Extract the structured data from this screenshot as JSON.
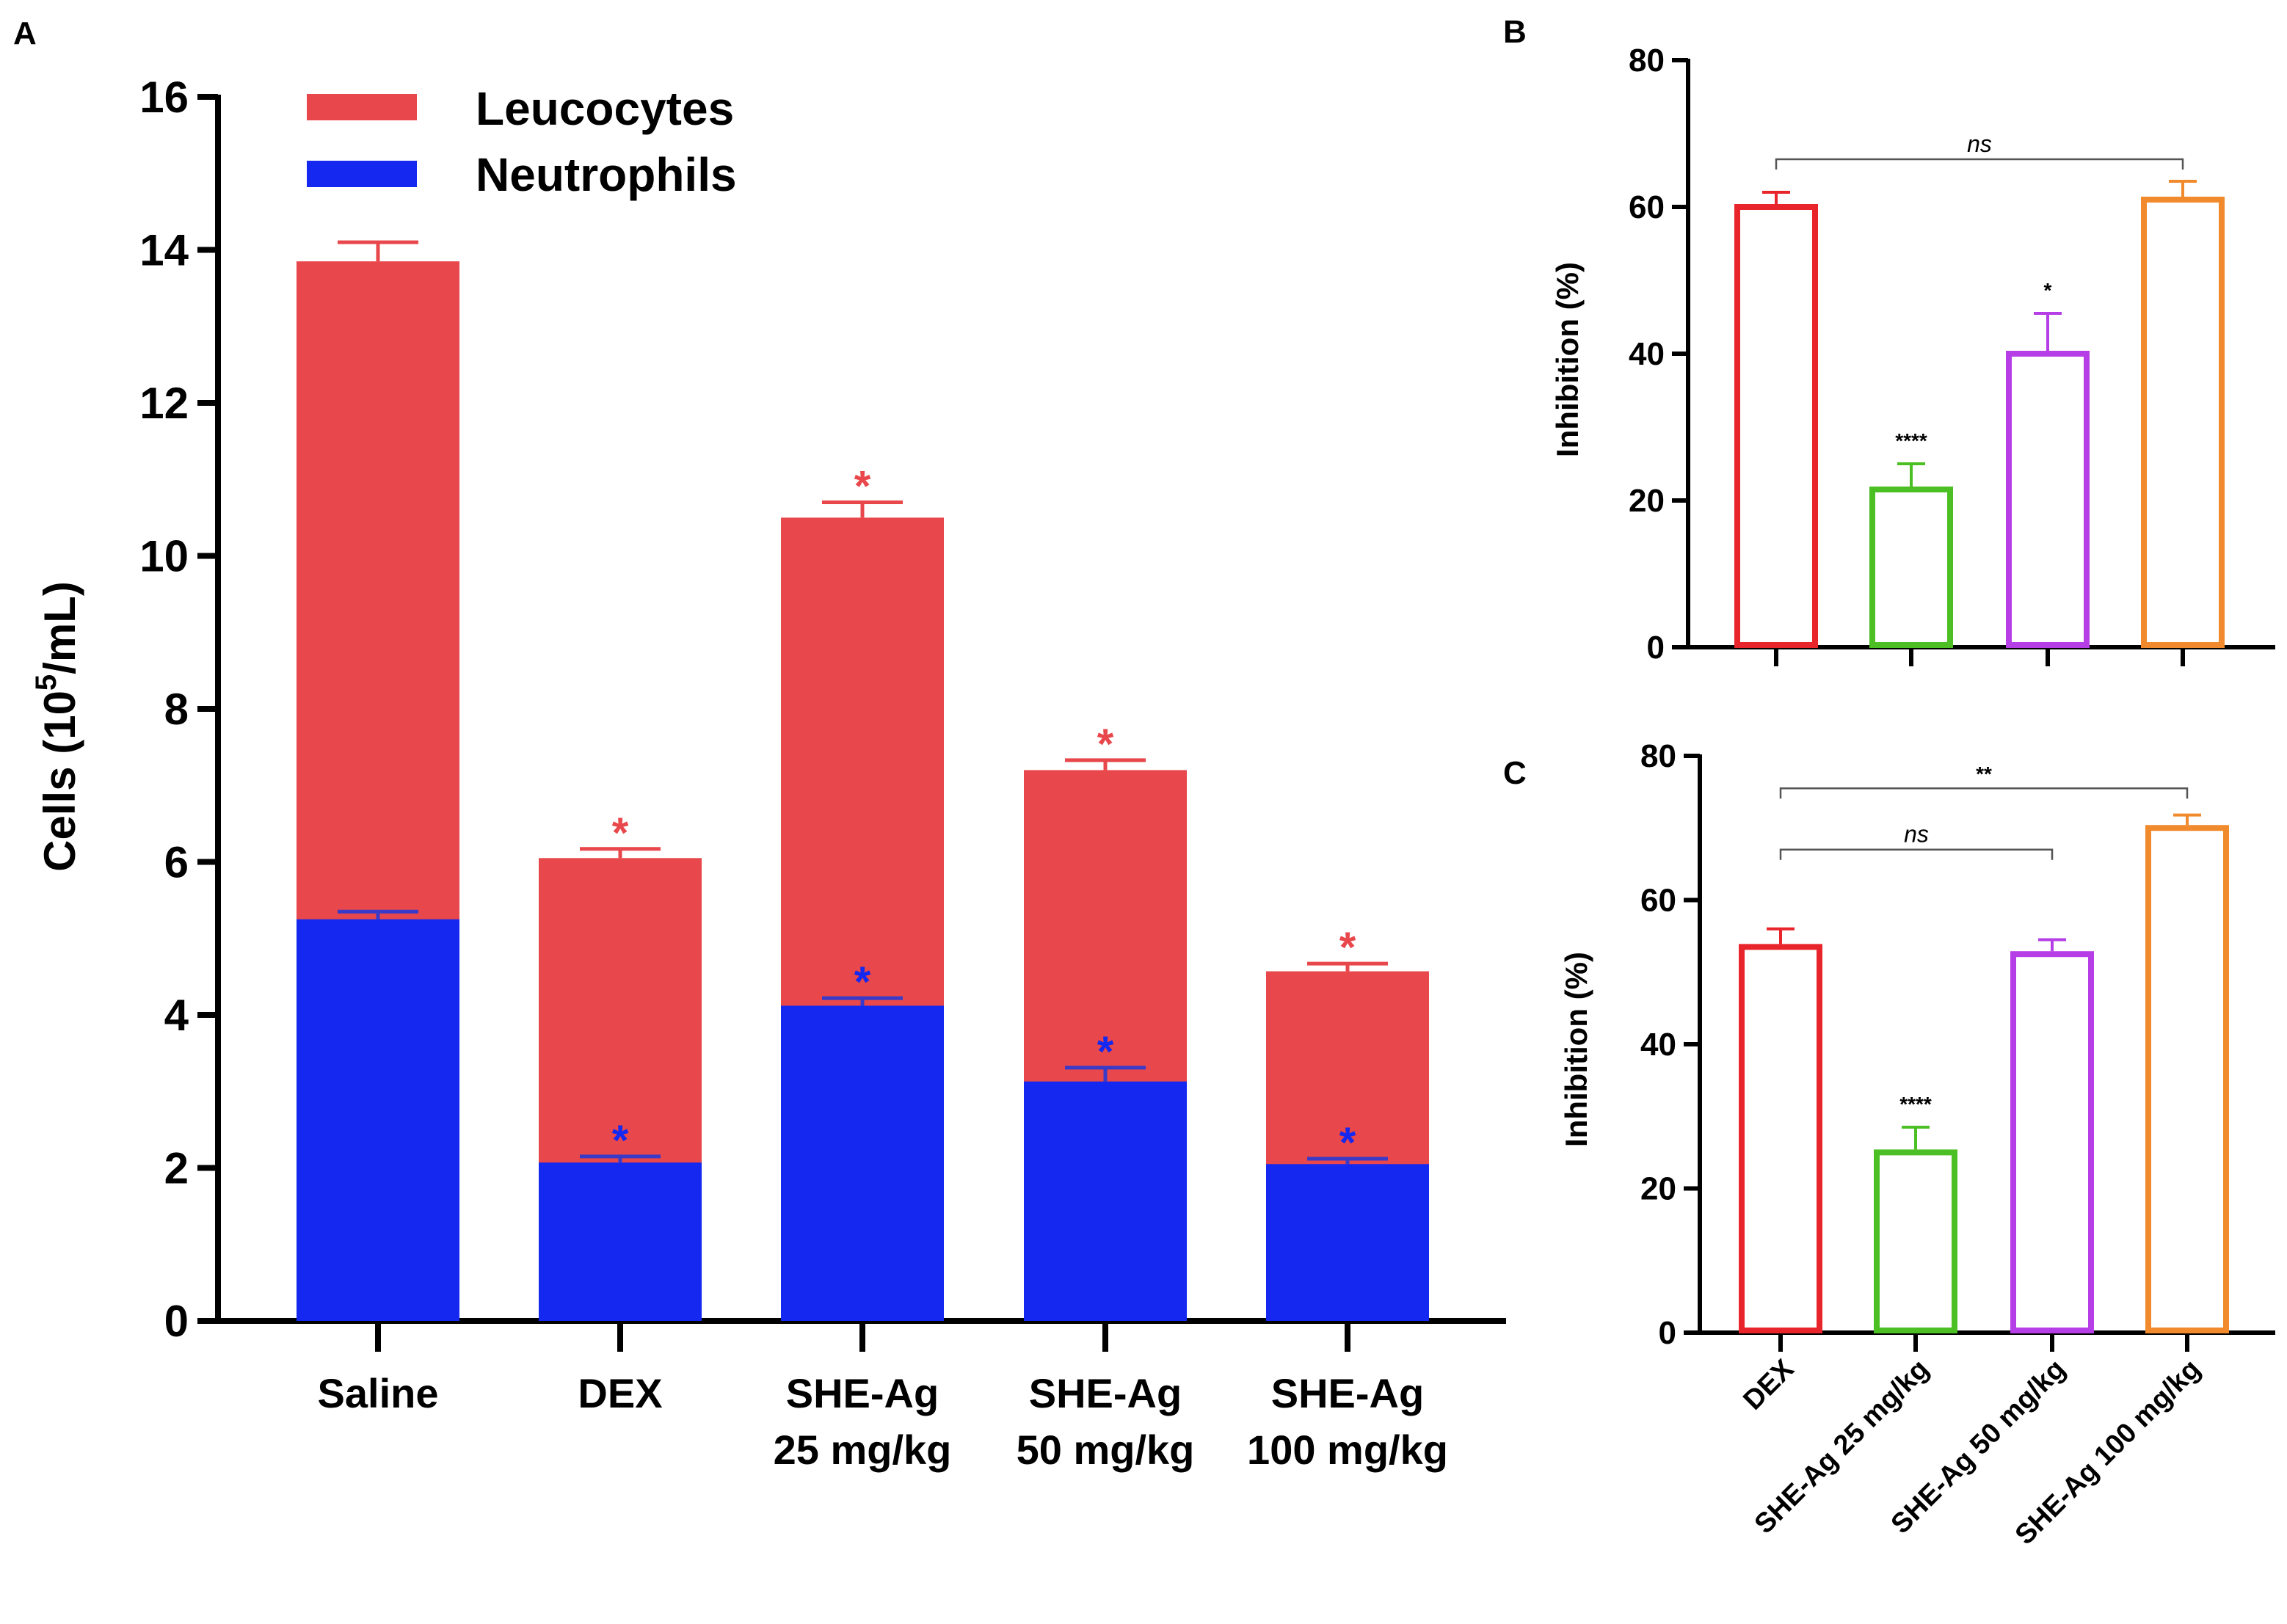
{
  "colors": {
    "leucocytes": "#e8474b",
    "neutrophils": "#1428f0",
    "dex": "#e8252b",
    "she25": "#4cbf24",
    "she50": "#b63ee6",
    "she100": "#f08a2c"
  },
  "chart_data": [
    {
      "id": "A",
      "panel_label": "A",
      "type": "bar",
      "stacked": false,
      "overlay": true,
      "ylabel": "Cells (10",
      "ylabel_sup": "5",
      "ylabel_end": "/mL)",
      "ylim": [
        0,
        16
      ],
      "yticks": [
        0,
        2,
        4,
        6,
        8,
        10,
        12,
        14,
        16
      ],
      "categories": [
        {
          "line1": "Saline",
          "line2": ""
        },
        {
          "line1": "DEX",
          "line2": ""
        },
        {
          "line1": "SHE-Ag",
          "line2": "25 mg/kg"
        },
        {
          "line1": "SHE-Ag",
          "line2": "50 mg/kg"
        },
        {
          "line1": "SHE-Ag",
          "line2": "100 mg/kg"
        }
      ],
      "legend": [
        {
          "name": "Leucocytes",
          "color": "#e8474b"
        },
        {
          "name": "Neutrophils",
          "color": "#1428f0"
        }
      ],
      "series": [
        {
          "name": "Leucocytes",
          "values": [
            13.85,
            6.05,
            10.5,
            7.2,
            4.57
          ],
          "errors": [
            0.25,
            0.12,
            0.2,
            0.13,
            0.1
          ],
          "sig": [
            "",
            "*",
            "*",
            "*",
            "*"
          ]
        },
        {
          "name": "Neutrophils",
          "values": [
            5.25,
            2.07,
            4.12,
            3.13,
            2.05
          ],
          "errors": [
            0.1,
            0.08,
            0.1,
            0.18,
            0.07
          ],
          "sig": [
            "",
            "*",
            "*",
            "*",
            "*"
          ]
        }
      ]
    },
    {
      "id": "B",
      "panel_label": "B",
      "type": "bar",
      "ylabel": "Inhibition  (%)",
      "ylim": [
        0,
        80
      ],
      "yticks": [
        0,
        20,
        40,
        60,
        80
      ],
      "categories": [
        "DEX",
        "SHE-Ag 25 mg/kg",
        "SHE-Ag 50 mg/kg",
        "SHE-Ag 100 mg/kg"
      ],
      "show_category_labels": false,
      "values": [
        60,
        21.5,
        40,
        61
      ],
      "errors": [
        2,
        3.5,
        5.5,
        2.5
      ],
      "sig": [
        "",
        "****",
        "*",
        ""
      ],
      "brackets": [
        {
          "from": 0,
          "to": 3,
          "label": "ns",
          "y": 66.5
        }
      ]
    },
    {
      "id": "C",
      "panel_label": "C",
      "type": "bar",
      "ylabel": "Inhibition  (%)",
      "ylim": [
        0,
        80
      ],
      "yticks": [
        0,
        20,
        40,
        60,
        80
      ],
      "categories": [
        "DEX",
        "SHE-Ag 25 mg/kg",
        "SHE-Ag 50 mg/kg",
        "SHE-Ag 100 mg/kg"
      ],
      "show_category_labels": true,
      "values": [
        53.5,
        25,
        52.5,
        70
      ],
      "errors": [
        2.5,
        3.5,
        2,
        1.8
      ],
      "sig": [
        "",
        "****",
        "",
        ""
      ],
      "brackets": [
        {
          "from": 0,
          "to": 3,
          "label": "**",
          "y": 75.5
        },
        {
          "from": 0,
          "to": 2,
          "label": "ns",
          "y": 67
        }
      ]
    }
  ]
}
